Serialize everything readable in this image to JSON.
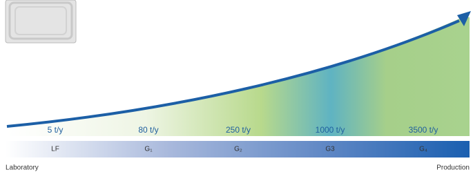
{
  "capacities": [
    "5 t/y",
    "80 t/y",
    "250 t/y",
    "1000 t/y",
    "3500 t/y"
  ],
  "models": [
    "LF",
    "G₁",
    "G₂",
    "G3",
    "G₄"
  ],
  "left_label": "Laboratory",
  "right_label": "Production"
}
